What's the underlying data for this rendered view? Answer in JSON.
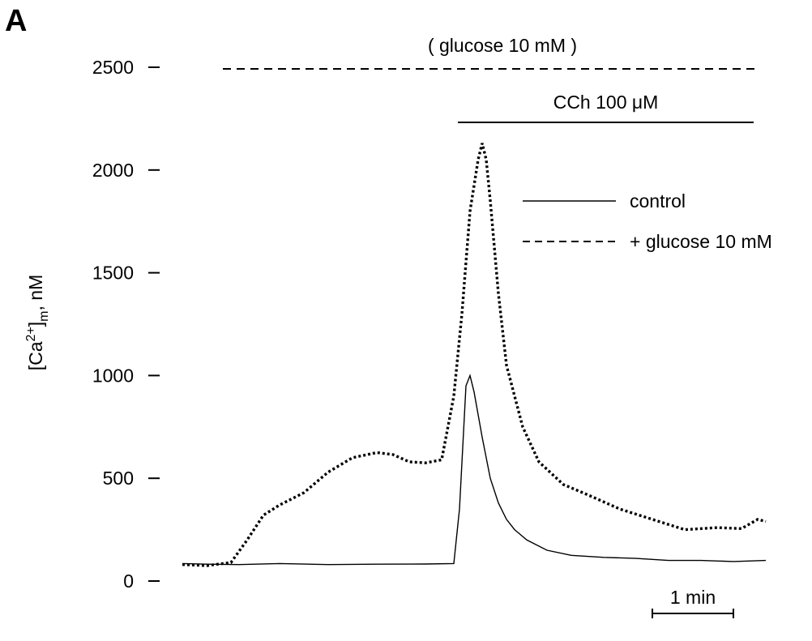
{
  "panel_label": "A",
  "chart_data": {
    "type": "line",
    "title": "",
    "ylabel_parts": {
      "prefix": "[Ca",
      "superscript": "2+",
      "mid": "]",
      "subscript": "m",
      "suffix": ", nM"
    },
    "xlabel": "",
    "ylim": [
      0,
      2500
    ],
    "yticks": [
      "0",
      "500",
      "1000",
      "1500",
      "2000",
      "2500"
    ],
    "ytick_values": [
      0,
      500,
      1000,
      1500,
      2000,
      2500
    ],
    "x_unit": "min",
    "xlim": [
      0,
      7.2
    ],
    "grid": false,
    "legend_position": "upper-right",
    "annotations": {
      "glucose_bar": {
        "label": "( glucose 10 mM )",
        "start_min": 0.5,
        "end_min": 7.1,
        "style": "dashed"
      },
      "cch_bar": {
        "label": "CCh 100 μM",
        "start_min": 3.4,
        "end_min": 7.05,
        "style": "solid"
      },
      "scale_bar": {
        "label": "1 min",
        "length_min": 1
      }
    },
    "series": [
      {
        "name": "control",
        "style": "solid",
        "color": "#000000",
        "x": [
          0,
          0.3,
          0.7,
          1.2,
          1.8,
          2.4,
          3.0,
          3.35,
          3.42,
          3.5,
          3.55,
          3.6,
          3.7,
          3.8,
          3.9,
          4.0,
          4.1,
          4.25,
          4.5,
          4.8,
          5.2,
          5.6,
          6.0,
          6.4,
          6.8,
          7.2
        ],
        "values": [
          85,
          82,
          80,
          85,
          80,
          82,
          83,
          85,
          350,
          950,
          1000,
          920,
          700,
          500,
          380,
          300,
          250,
          200,
          150,
          125,
          115,
          110,
          100,
          100,
          95,
          100
        ]
      },
      {
        "name": "+ glucose 10 mM",
        "style": "dotted",
        "color": "#000000",
        "x": [
          0,
          0.3,
          0.6,
          0.8,
          1.0,
          1.2,
          1.5,
          1.8,
          2.1,
          2.4,
          2.6,
          2.8,
          3.0,
          3.2,
          3.35,
          3.45,
          3.55,
          3.65,
          3.7,
          3.75,
          3.8,
          3.9,
          4.0,
          4.2,
          4.4,
          4.7,
          5.0,
          5.4,
          5.8,
          6.2,
          6.6,
          6.9,
          7.1,
          7.2
        ],
        "values": [
          80,
          75,
          90,
          200,
          320,
          370,
          430,
          530,
          600,
          625,
          615,
          580,
          575,
          590,
          900,
          1300,
          1800,
          2050,
          2130,
          2050,
          1850,
          1400,
          1050,
          750,
          580,
          470,
          420,
          350,
          300,
          250,
          260,
          255,
          300,
          290
        ]
      }
    ]
  }
}
